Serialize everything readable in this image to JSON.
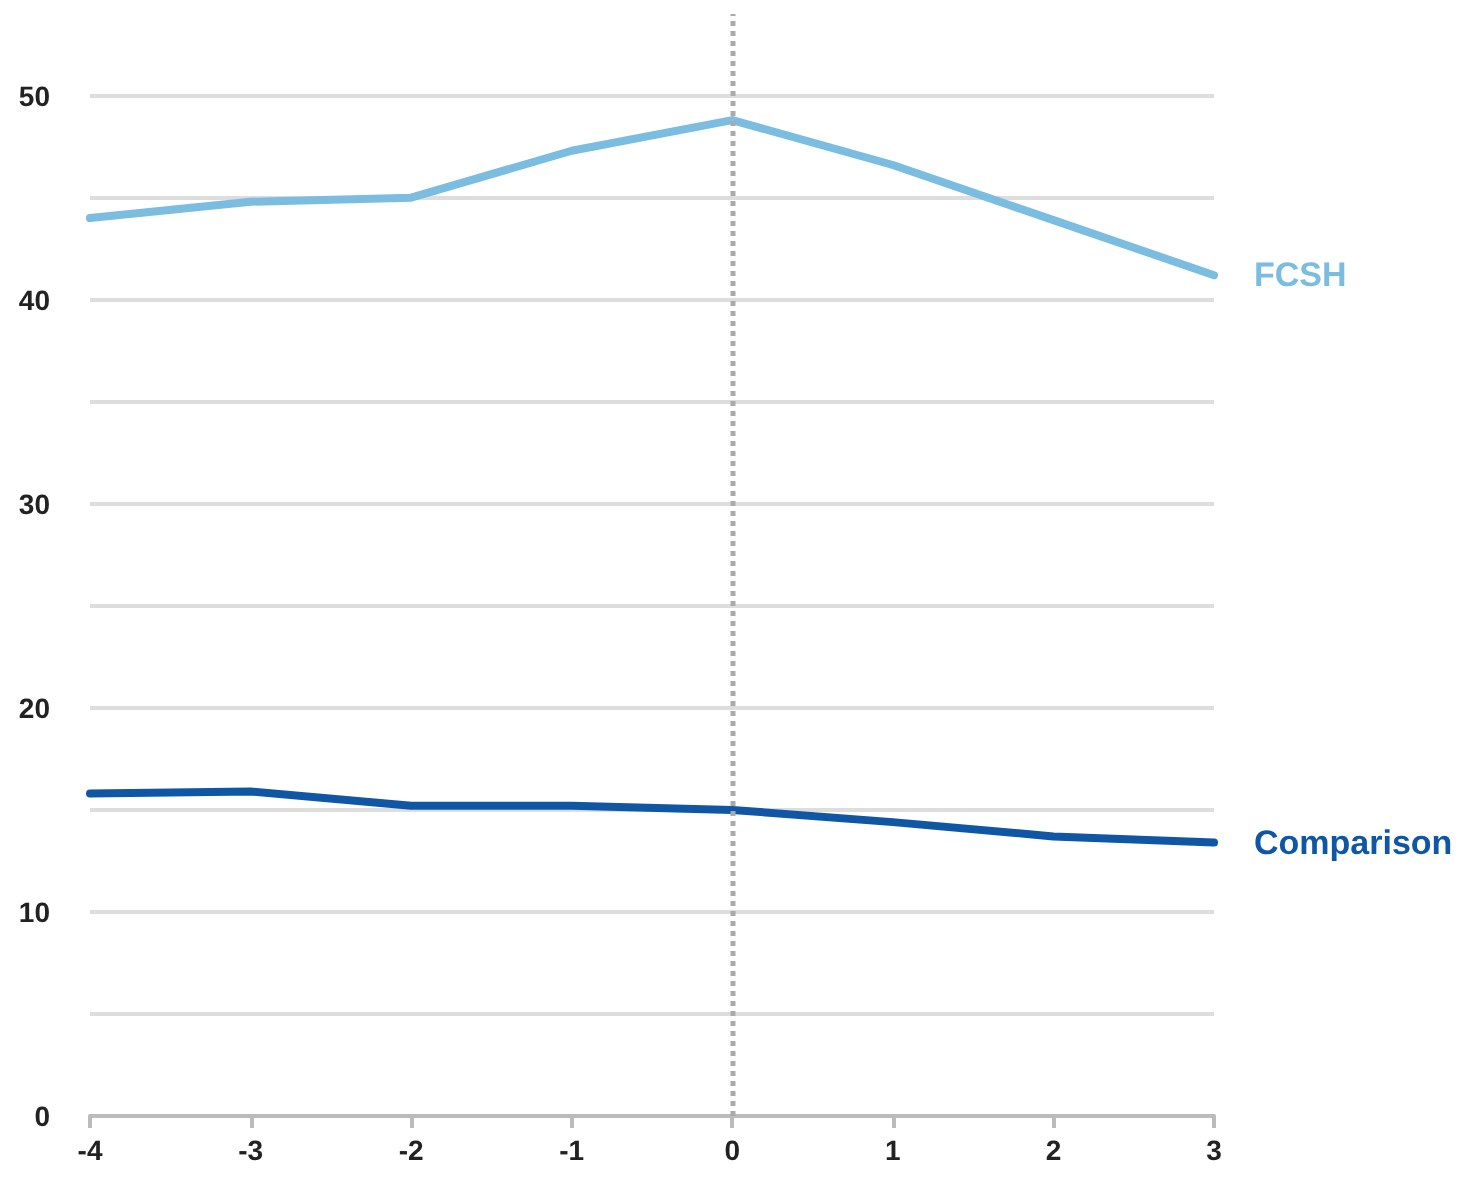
{
  "chart_data": {
    "type": "line",
    "x": [
      -4,
      -3,
      -2,
      -1,
      0,
      1,
      2,
      3
    ],
    "series": [
      {
        "name": "FCSH",
        "color": "#7abde0",
        "values": [
          44.0,
          44.8,
          45.0,
          47.3,
          48.8,
          46.6,
          43.9,
          41.2
        ]
      },
      {
        "name": "Comparison",
        "color": "#0f56a5",
        "values": [
          15.8,
          15.9,
          15.2,
          15.2,
          15.0,
          14.4,
          13.7,
          13.4
        ]
      }
    ],
    "xlim": [
      -4,
      3
    ],
    "xticks": [
      -4,
      -3,
      -2,
      -1,
      0,
      1,
      2,
      3
    ],
    "ylim": [
      0,
      54
    ],
    "yticks": [
      0,
      {
        "value": 5,
        "label": null
      },
      10,
      {
        "value": 15,
        "label": null
      },
      20,
      {
        "value": 25,
        "label": null
      },
      30,
      {
        "value": 35,
        "label": null
      },
      40,
      {
        "value": 45,
        "label": null
      },
      50
    ],
    "ref_lines": [
      {
        "axis": "x",
        "value": 0,
        "color": "#aaaaaa",
        "line_style": "dotted"
      }
    ],
    "grid": "y",
    "legend": false,
    "marker": "none",
    "line_style": "solid"
  }
}
